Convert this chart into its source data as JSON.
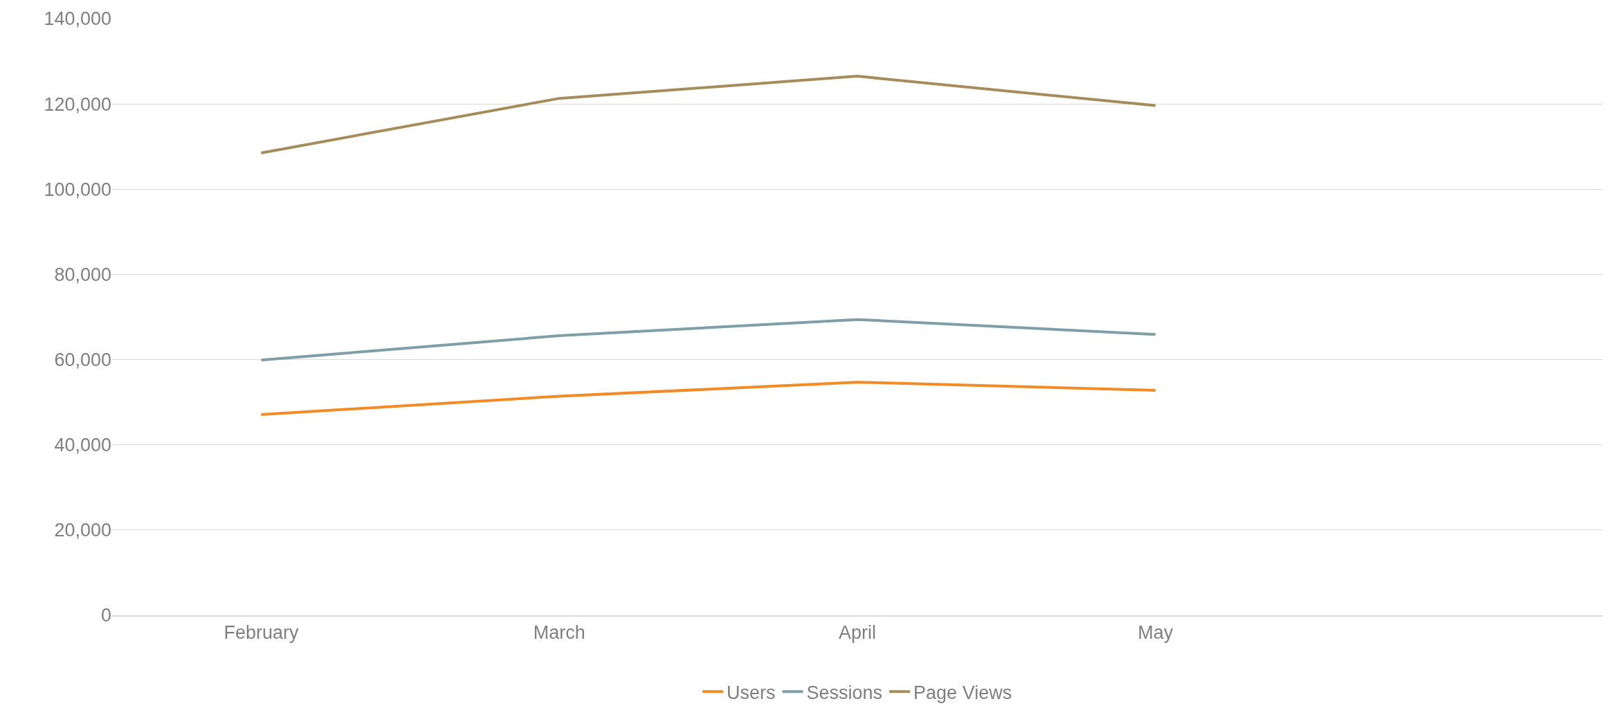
{
  "chart_data": {
    "type": "line",
    "categories": [
      "February",
      "March",
      "April",
      "May",
      null
    ],
    "series": [
      {
        "name": "Users",
        "color": "#f28a25",
        "values": [
          47100,
          51400,
          54700,
          52800,
          null
        ]
      },
      {
        "name": "Sessions",
        "color": "#7f9fa8",
        "values": [
          59900,
          65600,
          69400,
          65900,
          null
        ]
      },
      {
        "name": "Page Views",
        "color": "#a58c5a",
        "values": [
          108500,
          121300,
          126500,
          119600,
          null
        ]
      }
    ],
    "ylim": [
      0,
      140000
    ],
    "yticks": [
      {
        "value": 0,
        "label": "0"
      },
      {
        "value": 20000,
        "label": "20,000"
      },
      {
        "value": 40000,
        "label": "40,000"
      },
      {
        "value": 60000,
        "label": "60,000"
      },
      {
        "value": 80000,
        "label": "80,000"
      },
      {
        "value": 100000,
        "label": "100,000"
      },
      {
        "value": 120000,
        "label": "120,000"
      },
      {
        "value": 140000,
        "label": "140,000"
      }
    ],
    "grid": "y",
    "legend": "bottom",
    "marker": "none",
    "line_style": "solid"
  }
}
